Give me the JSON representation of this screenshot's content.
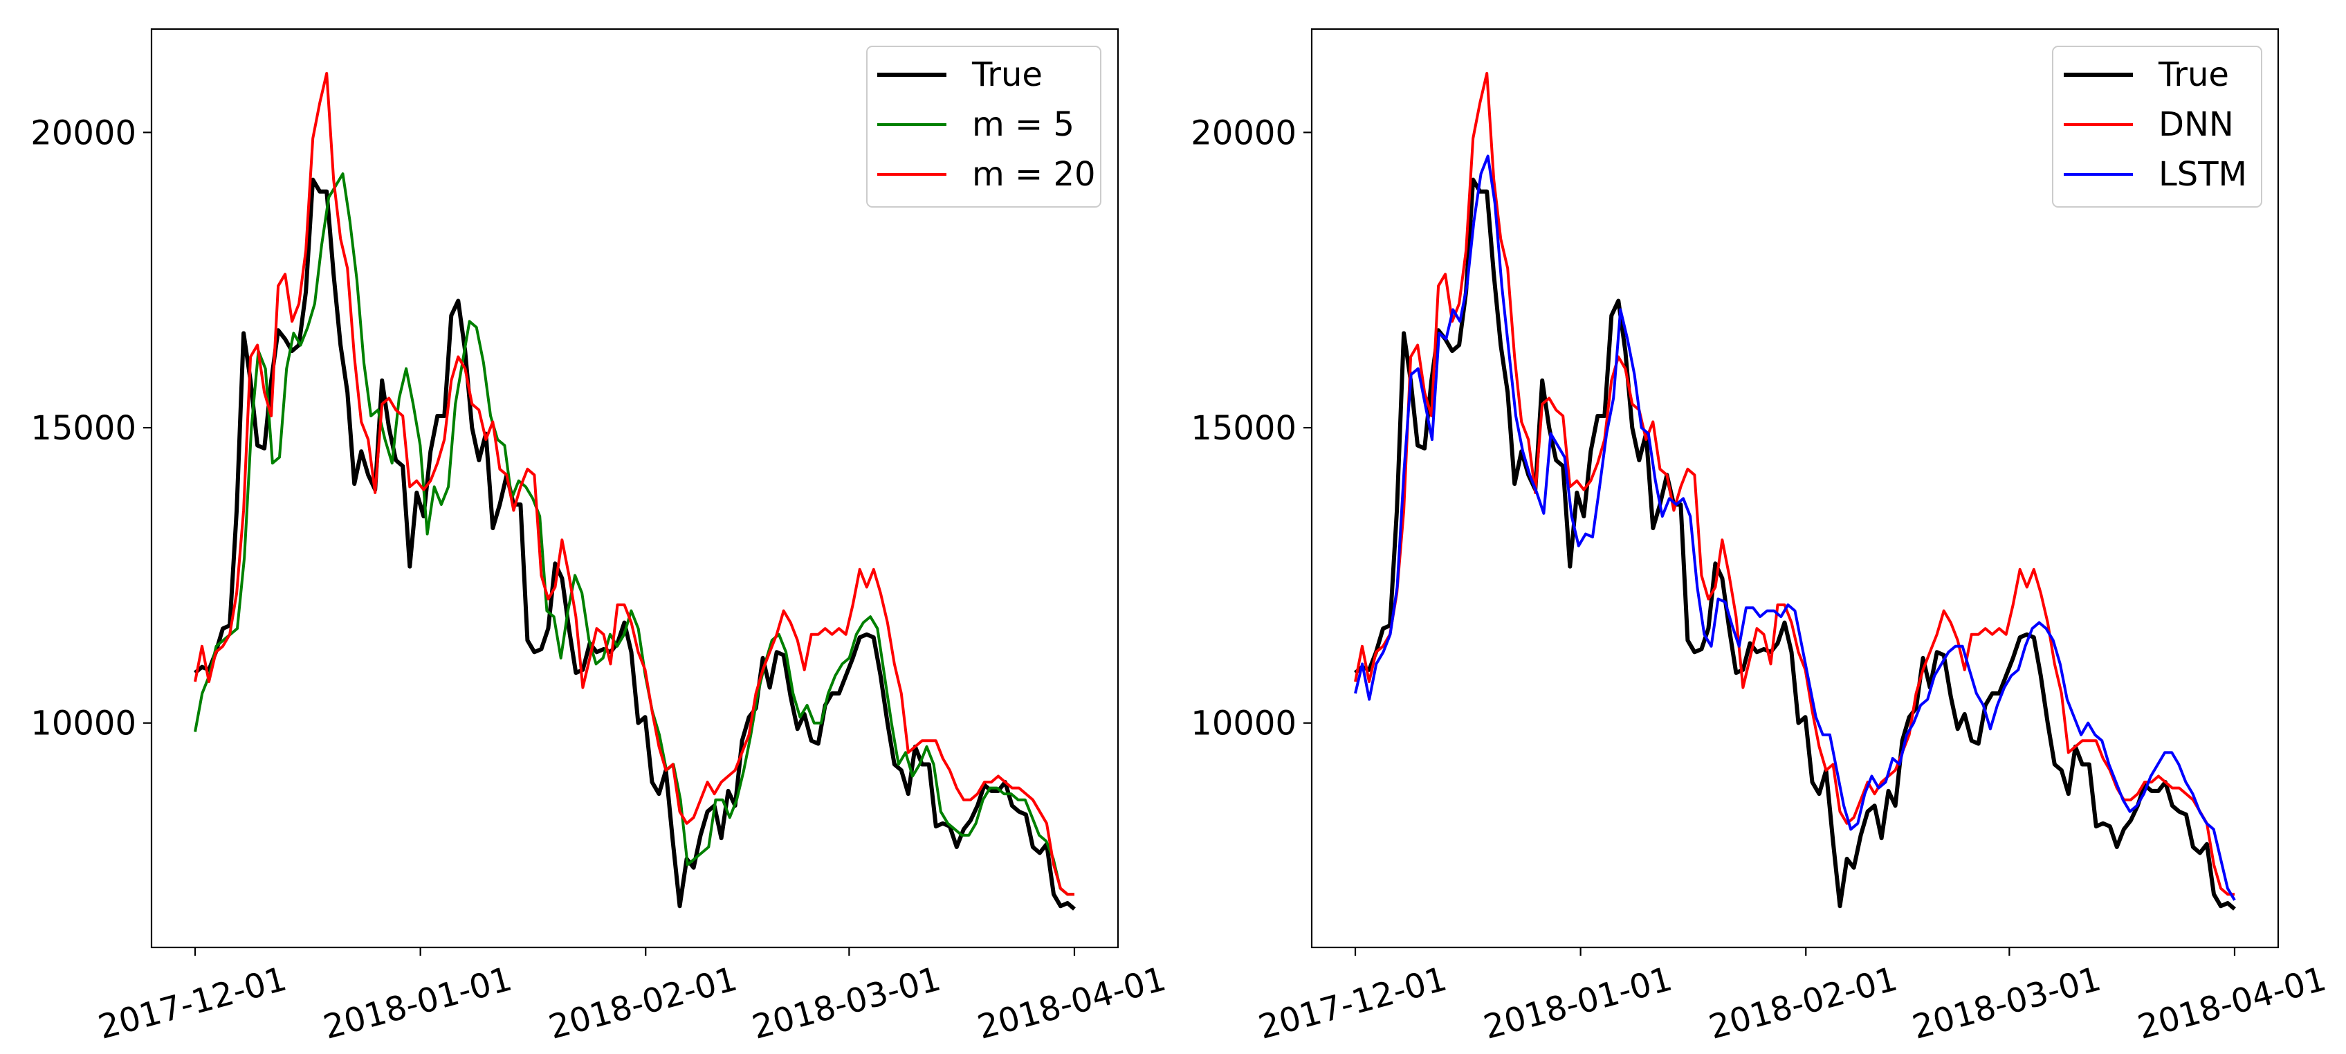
{
  "colors": {
    "true": "#000000",
    "m5": "#008000",
    "m20": "#ff0000",
    "dnn": "#ff0000",
    "lstm": "#0000ff"
  },
  "chart_data": [
    {
      "type": "line",
      "title": "",
      "xlabel": "",
      "ylabel": "",
      "x_ticks": [
        "2017-12-01",
        "2018-01-01",
        "2018-02-01",
        "2018-03-01",
        "2018-04-01"
      ],
      "y_ticks": [
        "10000",
        "15000",
        "20000"
      ],
      "xlim": [
        "2017-11-25",
        "2018-04-07"
      ],
      "ylim": [
        6200,
        21750
      ],
      "grid": false,
      "legend": "top-right",
      "legend_entries": [
        "True",
        "m = 5",
        "m = 20"
      ],
      "series": [
        {
          "name": "True",
          "color_key": "true",
          "x_start": "2017-12-01",
          "x_end": "2018-04-01",
          "values": [
            10850,
            10950,
            10900,
            11200,
            11600,
            11650,
            13600,
            16600,
            15800,
            14700,
            14650,
            15800,
            16650,
            16500,
            16300,
            16400,
            17300,
            19200,
            19000,
            19000,
            17600,
            16400,
            15600,
            14050,
            14600,
            14200,
            13950,
            15800,
            15000,
            14450,
            14350,
            12650,
            13900,
            13500,
            14600,
            15200,
            15200,
            16900,
            17150,
            16300,
            15000,
            14450,
            14900,
            13300,
            13700,
            14200,
            13700,
            13700,
            11400,
            11200,
            11250,
            11600,
            12700,
            12450,
            11600,
            10850,
            10900,
            11350,
            11200,
            11250,
            11200,
            11350,
            11700,
            11200,
            10000,
            10100,
            9000,
            8800,
            9200,
            8000,
            6900,
            7700,
            7550,
            8100,
            8500,
            8600,
            8050,
            8850,
            8600,
            9700,
            10100,
            10250,
            11100,
            10600,
            11200,
            11150,
            10450,
            9900,
            10150,
            9700,
            9650,
            10300,
            10500,
            10500,
            10800,
            11100,
            11450,
            11500,
            11450,
            10800,
            10000,
            9300,
            9200,
            8800,
            9600,
            9300,
            9300,
            8250,
            8300,
            8250,
            7900,
            8200,
            8350,
            8600,
            8950,
            8850,
            8850,
            9000,
            8600,
            8500,
            8450,
            7900,
            7800,
            7950,
            7100,
            6900,
            6950,
            6850
          ]
        },
        {
          "name": "m = 5",
          "color_key": "m5",
          "x_start": "2017-12-01",
          "x_end": "2018-04-01",
          "values": [
            9850,
            10500,
            10800,
            11300,
            11400,
            11500,
            11600,
            12800,
            15000,
            16300,
            16000,
            14400,
            14500,
            16000,
            16600,
            16400,
            16700,
            17100,
            18100,
            18900,
            19100,
            19300,
            18500,
            17500,
            16100,
            15200,
            15300,
            14800,
            14400,
            15500,
            16000,
            15400,
            14700,
            13200,
            14000,
            13700,
            14000,
            15400,
            16100,
            16800,
            16700,
            16100,
            15200,
            14800,
            14700,
            13800,
            14100,
            14000,
            13800,
            13500,
            11900,
            11800,
            11100,
            11900,
            12500,
            12200,
            11400,
            11000,
            11100,
            11500,
            11300,
            11500,
            11900,
            11600,
            10800,
            10200,
            9800,
            9200,
            9300,
            8700,
            7600,
            7700,
            7800,
            7900,
            8700,
            8700,
            8400,
            8700,
            9200,
            9800,
            10500,
            11000,
            11400,
            11500,
            11200,
            10500,
            10100,
            10300,
            10000,
            10000,
            10500,
            10800,
            11000,
            11100,
            11500,
            11700,
            11800,
            11600,
            10800,
            10000,
            9300,
            9500,
            9100,
            9300,
            9600,
            9300,
            8500,
            8300,
            8200,
            8100,
            8100,
            8300,
            8700,
            8900,
            8900,
            8800,
            8800,
            8700,
            8700,
            8400,
            8100,
            8000,
            7700,
            7200,
            7100,
            7100
          ]
        },
        {
          "name": "m = 20",
          "color_key": "m20",
          "x_start": "2017-12-01",
          "x_end": "2018-04-01",
          "values": [
            10700,
            11300,
            10700,
            11200,
            11300,
            11500,
            12200,
            13600,
            16200,
            16400,
            15600,
            15200,
            17400,
            17600,
            16800,
            17100,
            18000,
            19900,
            20500,
            21000,
            19200,
            18200,
            17700,
            16200,
            15100,
            14800,
            13900,
            15400,
            15500,
            15300,
            15200,
            14000,
            14100,
            13950,
            14100,
            14400,
            14800,
            15800,
            16200,
            16000,
            15400,
            15300,
            14800,
            15100,
            14300,
            14200,
            13600,
            14000,
            14300,
            14200,
            12500,
            12100,
            12300,
            13100,
            12500,
            11800,
            10600,
            11100,
            11600,
            11500,
            11000,
            12000,
            12000,
            11700,
            11200,
            10900,
            10200,
            9600,
            9200,
            9300,
            8500,
            8300,
            8400,
            8700,
            9000,
            8800,
            9000,
            9100,
            9200,
            9500,
            9800,
            10500,
            10900,
            11200,
            11500,
            11900,
            11700,
            11400,
            10900,
            11500,
            11500,
            11600,
            11500,
            11600,
            11500,
            12000,
            12600,
            12300,
            12600,
            12200,
            11700,
            11000,
            10500,
            9500,
            9600,
            9700,
            9700,
            9700,
            9400,
            9200,
            8900,
            8700,
            8700,
            8800,
            9000,
            9000,
            9100,
            9000,
            8900,
            8900,
            8800,
            8700,
            8500,
            8300,
            7600,
            7200,
            7100,
            7100
          ]
        }
      ]
    },
    {
      "type": "line",
      "title": "",
      "xlabel": "",
      "ylabel": "",
      "x_ticks": [
        "2017-12-01",
        "2018-01-01",
        "2018-02-01",
        "2018-03-01",
        "2018-04-01"
      ],
      "y_ticks": [
        "10000",
        "15000",
        "20000"
      ],
      "xlim": [
        "2017-11-25",
        "2018-04-07"
      ],
      "ylim": [
        6200,
        21750
      ],
      "grid": false,
      "legend": "top-right",
      "legend_entries": [
        "True",
        "DNN",
        "LSTM"
      ],
      "series": [
        {
          "name": "True",
          "color_key": "true",
          "x_start": "2017-12-01",
          "x_end": "2018-04-01",
          "values": [
            10850,
            10950,
            10900,
            11200,
            11600,
            11650,
            13600,
            16600,
            15800,
            14700,
            14650,
            15800,
            16650,
            16500,
            16300,
            16400,
            17300,
            19200,
            19000,
            19000,
            17600,
            16400,
            15600,
            14050,
            14600,
            14200,
            13950,
            15800,
            15000,
            14450,
            14350,
            12650,
            13900,
            13500,
            14600,
            15200,
            15200,
            16900,
            17150,
            16300,
            15000,
            14450,
            14900,
            13300,
            13700,
            14200,
            13700,
            13700,
            11400,
            11200,
            11250,
            11600,
            12700,
            12450,
            11600,
            10850,
            10900,
            11350,
            11200,
            11250,
            11200,
            11350,
            11700,
            11200,
            10000,
            10100,
            9000,
            8800,
            9200,
            8000,
            6900,
            7700,
            7550,
            8100,
            8500,
            8600,
            8050,
            8850,
            8600,
            9700,
            10100,
            10250,
            11100,
            10600,
            11200,
            11150,
            10450,
            9900,
            10150,
            9700,
            9650,
            10300,
            10500,
            10500,
            10800,
            11100,
            11450,
            11500,
            11450,
            10800,
            10000,
            9300,
            9200,
            8800,
            9600,
            9300,
            9300,
            8250,
            8300,
            8250,
            7900,
            8200,
            8350,
            8600,
            8950,
            8850,
            8850,
            9000,
            8600,
            8500,
            8450,
            7900,
            7800,
            7950,
            7100,
            6900,
            6950,
            6850
          ]
        },
        {
          "name": "DNN",
          "color_key": "dnn",
          "x_start": "2017-12-01",
          "x_end": "2018-04-01",
          "values": [
            10700,
            11300,
            10700,
            11200,
            11300,
            11500,
            12200,
            13600,
            16200,
            16400,
            15600,
            15200,
            17400,
            17600,
            16800,
            17100,
            18000,
            19900,
            20500,
            21000,
            19200,
            18200,
            17700,
            16200,
            15100,
            14800,
            13900,
            15400,
            15500,
            15300,
            15200,
            14000,
            14100,
            13950,
            14100,
            14400,
            14800,
            15800,
            16200,
            16000,
            15400,
            15300,
            14800,
            15100,
            14300,
            14200,
            13600,
            14000,
            14300,
            14200,
            12500,
            12100,
            12300,
            13100,
            12500,
            11800,
            10600,
            11100,
            11600,
            11500,
            11000,
            12000,
            12000,
            11700,
            11200,
            10900,
            10200,
            9600,
            9200,
            9300,
            8500,
            8300,
            8400,
            8700,
            9000,
            8800,
            9000,
            9100,
            9200,
            9500,
            9800,
            10500,
            10900,
            11200,
            11500,
            11900,
            11700,
            11400,
            10900,
            11500,
            11500,
            11600,
            11500,
            11600,
            11500,
            12000,
            12600,
            12300,
            12600,
            12200,
            11700,
            11000,
            10500,
            9500,
            9600,
            9700,
            9700,
            9700,
            9400,
            9200,
            8900,
            8700,
            8700,
            8800,
            9000,
            9000,
            9100,
            9000,
            8900,
            8900,
            8800,
            8700,
            8500,
            8300,
            7600,
            7200,
            7100,
            7100
          ]
        },
        {
          "name": "LSTM",
          "color_key": "lstm",
          "x_start": "2017-12-01",
          "x_end": "2018-04-01",
          "values": [
            10500,
            11000,
            10400,
            11000,
            11200,
            11500,
            12300,
            14300,
            15900,
            16000,
            15400,
            14800,
            16600,
            16500,
            17000,
            16800,
            17400,
            18500,
            19300,
            19600,
            18800,
            17400,
            16300,
            15200,
            14600,
            14200,
            13900,
            13550,
            14900,
            14700,
            14500,
            13500,
            13000,
            13200,
            13150,
            14000,
            14900,
            15500,
            17000,
            16500,
            15900,
            15000,
            14900,
            14100,
            13500,
            13800,
            13700,
            13800,
            13500,
            12300,
            11500,
            11300,
            12100,
            12050,
            11650,
            11300,
            11950,
            11950,
            11800,
            11900,
            11900,
            11800,
            12000,
            11900,
            11300,
            10700,
            10100,
            9800,
            9800,
            9200,
            8600,
            8200,
            8300,
            8800,
            9100,
            8900,
            9000,
            9400,
            9300,
            9800,
            10000,
            10300,
            10400,
            10800,
            11000,
            11200,
            11300,
            11300,
            10900,
            10500,
            10300,
            9900,
            10300,
            10600,
            10800,
            10900,
            11300,
            11600,
            11700,
            11600,
            11400,
            11000,
            10400,
            10100,
            9800,
            10000,
            9800,
            9700,
            9300,
            9000,
            8700,
            8500,
            8600,
            8800,
            9100,
            9300,
            9500,
            9500,
            9300,
            9000,
            8800,
            8500,
            8300,
            8200,
            7700,
            7200,
            7000
          ]
        }
      ]
    }
  ]
}
